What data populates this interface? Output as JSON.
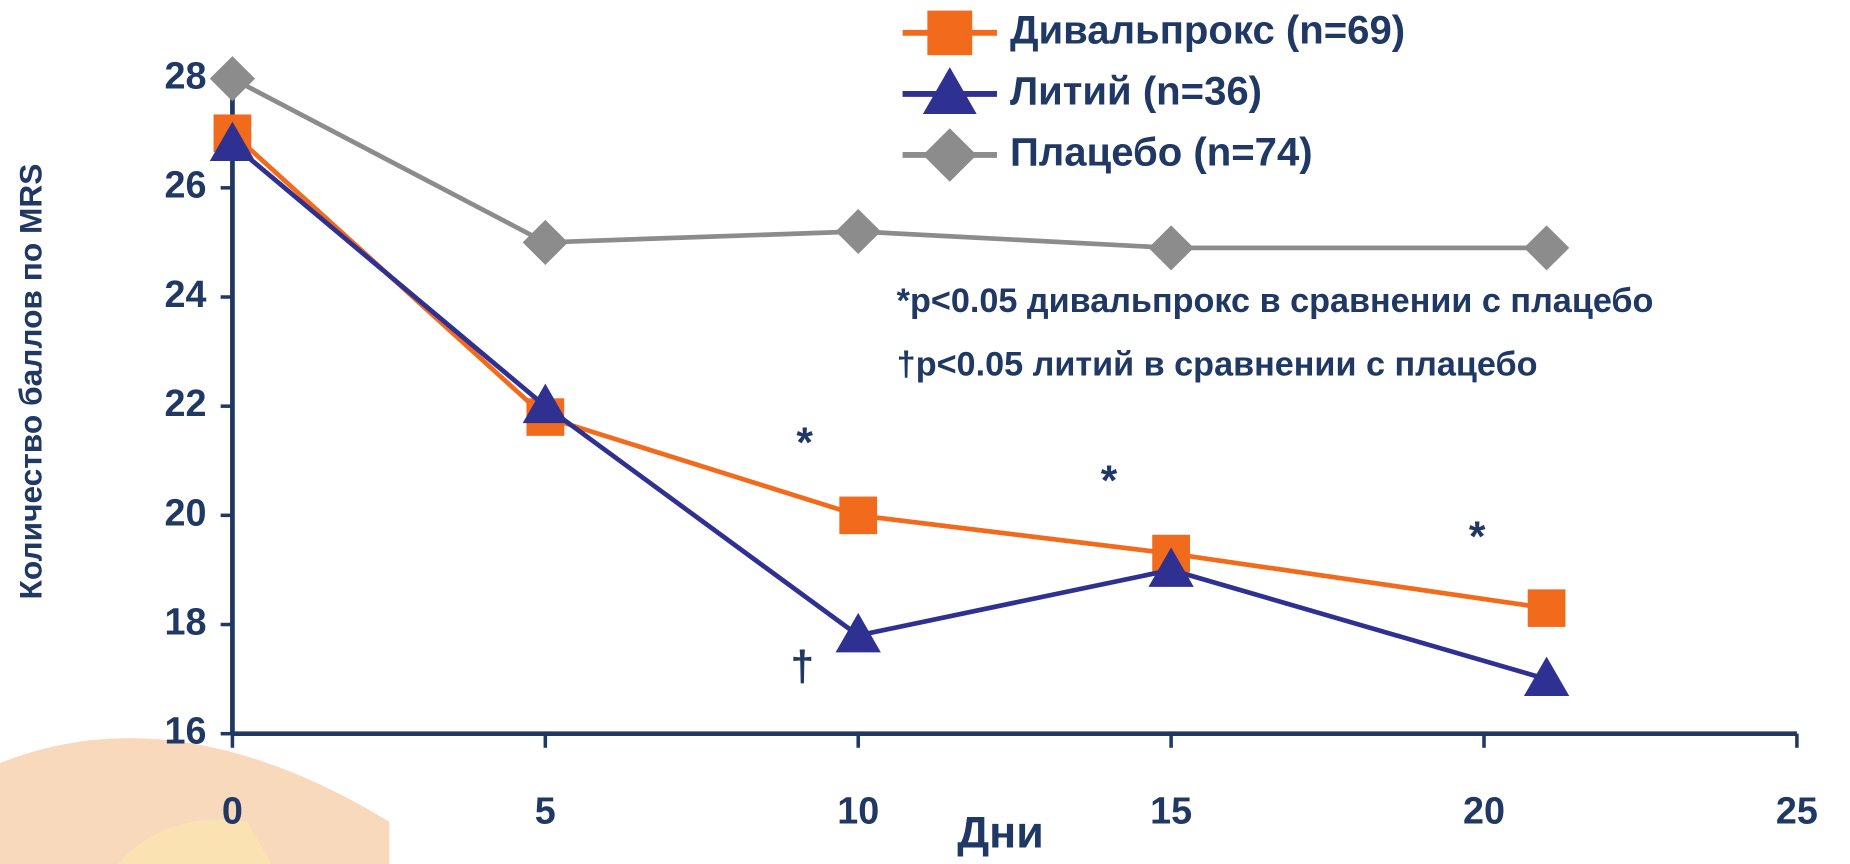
{
  "chart_data": {
    "type": "line",
    "xlabel": "Дни",
    "ylabel": "Количество баллов по MRS",
    "x": [
      0,
      5,
      10,
      15,
      21
    ],
    "series": [
      {
        "name": "Дивальпрокс (n=69)",
        "color": "#f26b1d",
        "marker": "square",
        "values": [
          27,
          21.8,
          20,
          19.3,
          18.3
        ]
      },
      {
        "name": "Литий (n=36)",
        "color": "#2e3192",
        "marker": "triangle",
        "values": [
          26.8,
          22,
          17.8,
          19,
          17
        ]
      },
      {
        "name": "Плацебо (n=74)",
        "color": "#8c8c8c",
        "marker": "diamond",
        "values": [
          28,
          25,
          25.2,
          24.9,
          24.9
        ]
      }
    ],
    "xlim": [
      0,
      25
    ],
    "xticks": [
      0,
      5,
      10,
      15,
      20,
      25
    ],
    "ylim": [
      16,
      28
    ],
    "yticks": [
      16,
      18,
      20,
      22,
      24,
      26,
      28
    ],
    "notes": [
      "*p<0.05 дивальпрокс в сравнении с плацебо",
      "†p<0.05 литий в сравнении с плацебо"
    ],
    "annotations": [
      "*",
      "*",
      "*",
      "†"
    ]
  }
}
